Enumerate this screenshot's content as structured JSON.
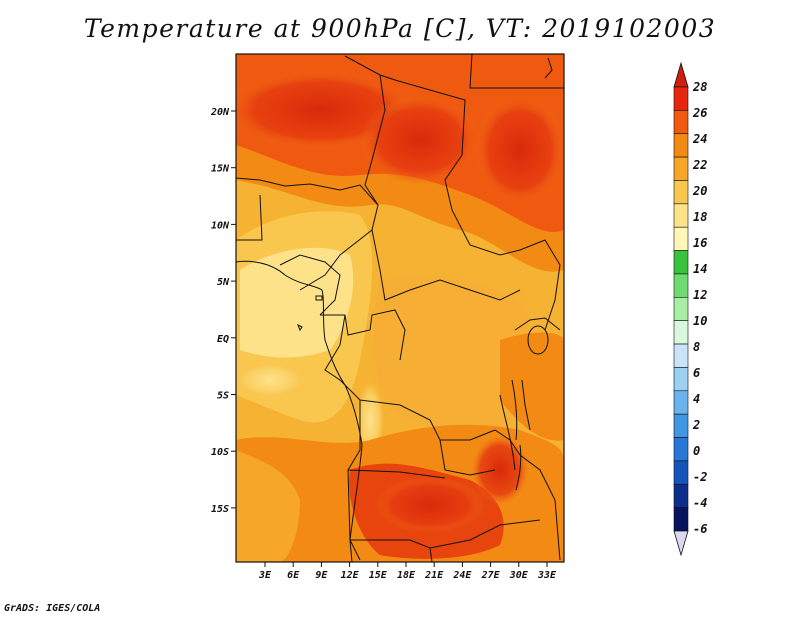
{
  "title": "Temperature at 900hPa [C], VT: 2019102003",
  "footer": "GrADS: IGES/COLA",
  "map": {
    "lat_labels": [
      "20N",
      "15N",
      "10N",
      "5N",
      "EQ",
      "5S",
      "10S",
      "15S"
    ],
    "lon_labels": [
      "3E",
      "6E",
      "9E",
      "12E",
      "15E",
      "18E",
      "21E",
      "24E",
      "27E",
      "30E",
      "33E"
    ]
  },
  "colorbar": {
    "labels": [
      "28",
      "26",
      "24",
      "22",
      "20",
      "18",
      "16",
      "14",
      "12",
      "10",
      "8",
      "6",
      "4",
      "2",
      "0",
      "-2",
      "-4",
      "-6"
    ],
    "colors": [
      "#e8250e",
      "#f05a10",
      "#f38a14",
      "#f6a728",
      "#f9c64e",
      "#fde28a",
      "#fff6b8",
      "#38c43a",
      "#6edb6e",
      "#a8efa5",
      "#d8f7dc",
      "#c8e4f6",
      "#9cd0f3",
      "#6ab4ed",
      "#3f97e4",
      "#2777d6",
      "#1654bc",
      "#0c2f8e",
      "#06135e"
    ],
    "top_arrow_color": "#cc1f10",
    "bottom_arrow_color": "#ded6f3"
  }
}
